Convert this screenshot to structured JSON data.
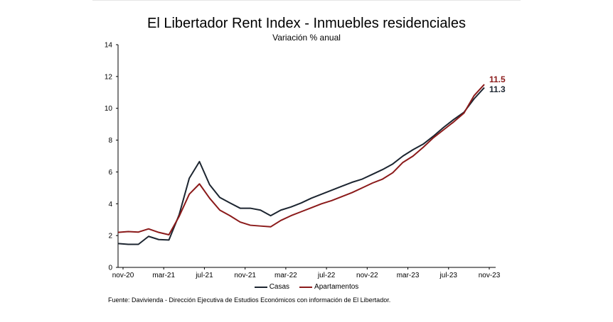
{
  "chart_data": {
    "type": "line",
    "title": "El Libertador Rent Index - Inmuebles residenciales",
    "subtitle": "Variación  % anual",
    "xlabel": "",
    "ylabel": "",
    "ylim": [
      0,
      14
    ],
    "yticks": [
      "0",
      "2",
      "4",
      "6",
      "8",
      "10",
      "12",
      "14"
    ],
    "x": [
      "nov-20",
      "dic-20",
      "ene-21",
      "feb-21",
      "mar-21",
      "abr-21",
      "may-21",
      "jun-21",
      "jul-21",
      "ago-21",
      "sep-21",
      "oct-21",
      "nov-21",
      "dic-21",
      "ene-22",
      "feb-22",
      "mar-22",
      "abr-22",
      "may-22",
      "jun-22",
      "jul-22",
      "ago-22",
      "sep-22",
      "oct-22",
      "nov-22",
      "dic-22",
      "ene-23",
      "feb-23",
      "mar-23",
      "abr-23",
      "may-23",
      "jun-23",
      "jul-23",
      "ago-23",
      "sep-23",
      "oct-23",
      "nov-23"
    ],
    "xtick_labels": [
      "nov-20",
      "mar-21",
      "jul-21",
      "nov-21",
      "mar-22",
      "jul-22",
      "nov-22",
      "mar-23",
      "jul-23",
      "nov-23"
    ],
    "grid": false,
    "legend_position": "bottom",
    "series": [
      {
        "name": "Casas",
        "color": "#1c2530",
        "end_label": "11.3",
        "values": [
          1.5,
          1.45,
          1.45,
          1.95,
          1.75,
          1.72,
          3.3,
          5.6,
          6.65,
          5.2,
          4.4,
          4.05,
          3.72,
          3.72,
          3.6,
          3.25,
          3.6,
          3.8,
          4.05,
          4.35,
          4.6,
          4.85,
          5.1,
          5.35,
          5.55,
          5.85,
          6.15,
          6.5,
          7.0,
          7.4,
          7.75,
          8.25,
          8.8,
          9.3,
          9.75,
          10.6,
          11.3
        ]
      },
      {
        "name": "Apartamentos",
        "color": "#8b1a1a",
        "end_label": "11.5",
        "values": [
          2.2,
          2.25,
          2.22,
          2.42,
          2.2,
          2.05,
          3.2,
          4.6,
          5.25,
          4.35,
          3.6,
          3.25,
          2.85,
          2.65,
          2.6,
          2.55,
          2.95,
          3.25,
          3.5,
          3.75,
          4.0,
          4.2,
          4.45,
          4.7,
          5.0,
          5.3,
          5.55,
          5.95,
          6.6,
          7.0,
          7.55,
          8.15,
          8.65,
          9.15,
          9.7,
          10.8,
          11.5
        ]
      }
    ]
  },
  "source": "Fuente: Davivienda - Dirección Ejecutiva de Estudios Económicos con información de El Libertador."
}
